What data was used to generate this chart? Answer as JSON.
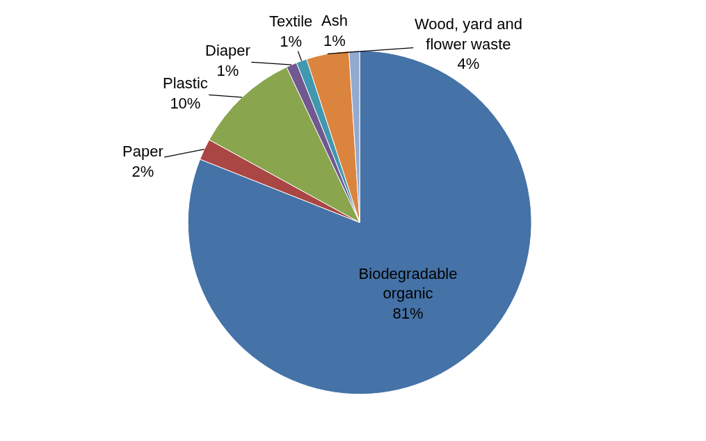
{
  "chart_data": {
    "type": "pie",
    "categories": [
      "Biodegradable organic",
      "Paper",
      "Plastic",
      "Diaper",
      "Textile",
      "Wood, yard and flower waste",
      "Ash"
    ],
    "values": [
      81,
      2,
      10,
      1,
      1,
      4,
      1
    ],
    "value_labels": [
      "81%",
      "2%",
      "10%",
      "1%",
      "1%",
      "4%",
      "1%"
    ],
    "colors": [
      "#4572a7",
      "#aa4643",
      "#89a54e",
      "#71588f",
      "#4198af",
      "#db843d",
      "#93a9cf"
    ],
    "legend": false
  }
}
